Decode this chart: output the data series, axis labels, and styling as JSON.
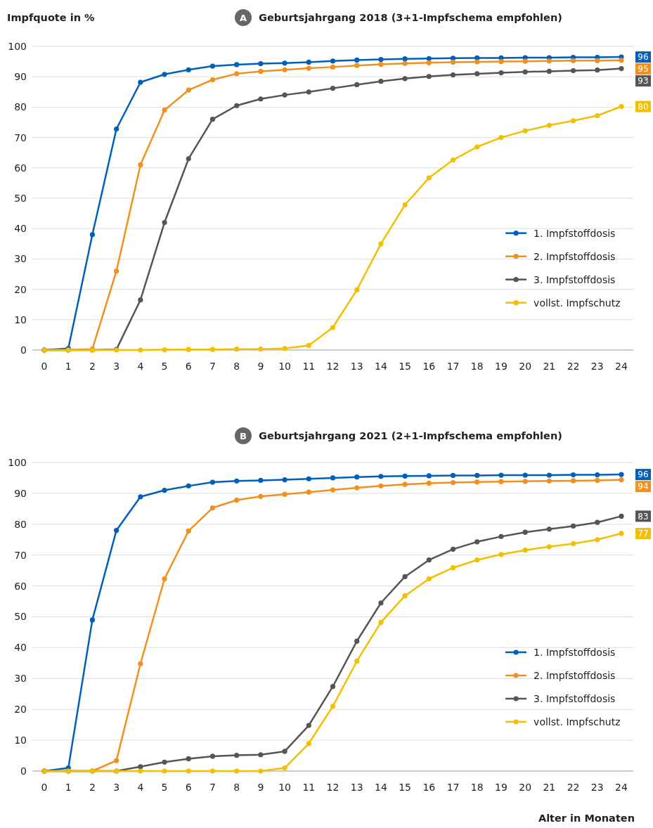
{
  "chart_data": [
    {
      "type": "line",
      "title": "Geburtsjahrgang 2018 (3+1-Impfschema empfohlen)",
      "annotations": [
        "A"
      ],
      "ylabel": "Impfquote in %",
      "x": [
        0,
        1,
        2,
        3,
        4,
        5,
        6,
        7,
        8,
        9,
        10,
        11,
        12,
        13,
        14,
        15,
        16,
        17,
        18,
        19,
        20,
        21,
        22,
        23,
        24
      ],
      "xlim": [
        -0.5,
        24.5
      ],
      "xticks": [
        0,
        1,
        2,
        3,
        4,
        5,
        6,
        7,
        8,
        9,
        10,
        11,
        12,
        13,
        14,
        15,
        16,
        17,
        18,
        19,
        20,
        21,
        22,
        23,
        24
      ],
      "ylim": [
        0,
        100
      ],
      "yticks": [
        0,
        10,
        20,
        30,
        40,
        50,
        60,
        70,
        80,
        90,
        100
      ],
      "grid": "y",
      "legend": "bottom right",
      "marker": "circle",
      "series": [
        {
          "name": "1. Impfstoffdosis",
          "color": "#0060b9",
          "values": [
            0,
            0.5,
            38,
            72.8,
            88.2,
            90.8,
            92.3,
            93.5,
            94,
            94.3,
            94.5,
            94.8,
            95.2,
            95.5,
            95.7,
            95.9,
            96,
            96.1,
            96.2,
            96.2,
            96.3,
            96.3,
            96.4,
            96.4,
            96.5
          ],
          "value_labels": [
            null,
            null,
            null,
            null,
            null,
            null,
            null,
            null,
            null,
            null,
            null,
            null,
            null,
            null,
            null,
            null,
            null,
            null,
            null,
            null,
            null,
            null,
            null,
            null,
            "96"
          ]
        },
        {
          "name": "2. Impfstoffdosis",
          "color": "#f0901e",
          "values": [
            0,
            0,
            0.3,
            26,
            61,
            79,
            85.6,
            89,
            91,
            91.8,
            92.3,
            92.8,
            93.2,
            93.7,
            94.1,
            94.4,
            94.6,
            94.8,
            94.9,
            95,
            95.1,
            95.2,
            95.3,
            95.3,
            95.4
          ],
          "value_labels": [
            null,
            null,
            null,
            null,
            null,
            null,
            null,
            null,
            null,
            null,
            null,
            null,
            null,
            null,
            null,
            null,
            null,
            null,
            null,
            null,
            null,
            null,
            null,
            null,
            "95"
          ]
        },
        {
          "name": "3. Impfstoffdosis",
          "color": "#555555",
          "values": [
            0,
            0,
            0,
            0.2,
            16.5,
            42,
            63,
            76,
            80.5,
            82.7,
            84,
            85,
            86.2,
            87.4,
            88.5,
            89.4,
            90.1,
            90.6,
            91,
            91.3,
            91.6,
            91.8,
            92,
            92.2,
            92.7
          ],
          "value_labels": [
            null,
            null,
            null,
            null,
            null,
            null,
            null,
            null,
            null,
            null,
            null,
            null,
            null,
            null,
            null,
            null,
            null,
            null,
            null,
            null,
            null,
            null,
            null,
            null,
            "93"
          ]
        },
        {
          "name": "vollst. Impfschutz",
          "color": "#f2c000",
          "values": [
            0,
            0,
            0,
            0,
            0,
            0.1,
            0.2,
            0.2,
            0.3,
            0.3,
            0.5,
            1.5,
            7.4,
            19.8,
            35,
            47.8,
            56.7,
            62.6,
            66.9,
            70,
            72.2,
            74,
            75.5,
            77.2,
            80.2
          ],
          "value_labels": [
            null,
            null,
            null,
            null,
            null,
            null,
            null,
            null,
            null,
            null,
            null,
            null,
            null,
            null,
            null,
            null,
            null,
            null,
            null,
            null,
            null,
            null,
            null,
            null,
            "80"
          ]
        }
      ]
    },
    {
      "type": "line",
      "title": "Geburtsjahrgang 2021 (2+1-Impfschema empfohlen)",
      "annotations": [
        "B"
      ],
      "xlabel": "Alter in Monaten",
      "x": [
        0,
        1,
        2,
        3,
        4,
        5,
        6,
        7,
        8,
        9,
        10,
        11,
        12,
        13,
        14,
        15,
        16,
        17,
        18,
        19,
        20,
        21,
        22,
        23,
        24
      ],
      "xlim": [
        -0.5,
        24.5
      ],
      "xticks": [
        0,
        1,
        2,
        3,
        4,
        5,
        6,
        7,
        8,
        9,
        10,
        11,
        12,
        13,
        14,
        15,
        16,
        17,
        18,
        19,
        20,
        21,
        22,
        23,
        24
      ],
      "ylim": [
        0,
        100
      ],
      "yticks": [
        0,
        10,
        20,
        30,
        40,
        50,
        60,
        70,
        80,
        90,
        100
      ],
      "grid": "y",
      "legend": "bottom right",
      "marker": "circle",
      "series": [
        {
          "name": "1. Impfstoffdosis",
          "color": "#0060b9",
          "values": [
            0,
            1,
            49,
            78,
            88.9,
            91,
            92.4,
            93.6,
            94,
            94.2,
            94.4,
            94.7,
            95,
            95.3,
            95.5,
            95.6,
            95.7,
            95.8,
            95.8,
            95.9,
            95.9,
            95.9,
            96,
            96,
            96.1
          ],
          "value_labels": [
            null,
            null,
            null,
            null,
            null,
            null,
            null,
            null,
            null,
            null,
            null,
            null,
            null,
            null,
            null,
            null,
            null,
            null,
            null,
            null,
            null,
            null,
            null,
            null,
            "96"
          ]
        },
        {
          "name": "2. Impfstoffdosis",
          "color": "#f0901e",
          "values": [
            0,
            0,
            0,
            3.4,
            34.8,
            62.3,
            77.8,
            85.3,
            87.8,
            89,
            89.7,
            90.4,
            91.1,
            91.8,
            92.4,
            92.9,
            93.3,
            93.5,
            93.7,
            93.8,
            93.9,
            94,
            94.1,
            94.2,
            94.4
          ],
          "value_labels": [
            null,
            null,
            null,
            null,
            null,
            null,
            null,
            null,
            null,
            null,
            null,
            null,
            null,
            null,
            null,
            null,
            null,
            null,
            null,
            null,
            null,
            null,
            null,
            null,
            "94"
          ]
        },
        {
          "name": "3. Impfstoffdosis",
          "color": "#555555",
          "values": [
            0,
            0,
            0,
            0,
            1.4,
            2.9,
            4,
            4.8,
            5.1,
            5.3,
            6.4,
            14.8,
            27.4,
            42.1,
            54.5,
            63,
            68.4,
            71.9,
            74.3,
            76,
            77.4,
            78.4,
            79.4,
            80.6,
            82.6
          ],
          "value_labels": [
            null,
            null,
            null,
            null,
            null,
            null,
            null,
            null,
            null,
            null,
            null,
            null,
            null,
            null,
            null,
            null,
            null,
            null,
            null,
            null,
            null,
            null,
            null,
            null,
            "83"
          ]
        },
        {
          "name": "vollst. Impfschutz",
          "color": "#f2c000",
          "values": [
            0,
            0,
            0,
            0,
            0,
            0,
            0,
            0,
            0,
            0,
            1,
            8.9,
            21,
            35.6,
            48.2,
            56.8,
            62.3,
            65.9,
            68.4,
            70.2,
            71.6,
            72.7,
            73.7,
            75,
            77
          ],
          "value_labels": [
            null,
            null,
            null,
            null,
            null,
            null,
            null,
            null,
            null,
            null,
            null,
            null,
            null,
            null,
            null,
            null,
            null,
            null,
            null,
            null,
            null,
            null,
            null,
            null,
            "77"
          ]
        }
      ]
    }
  ]
}
